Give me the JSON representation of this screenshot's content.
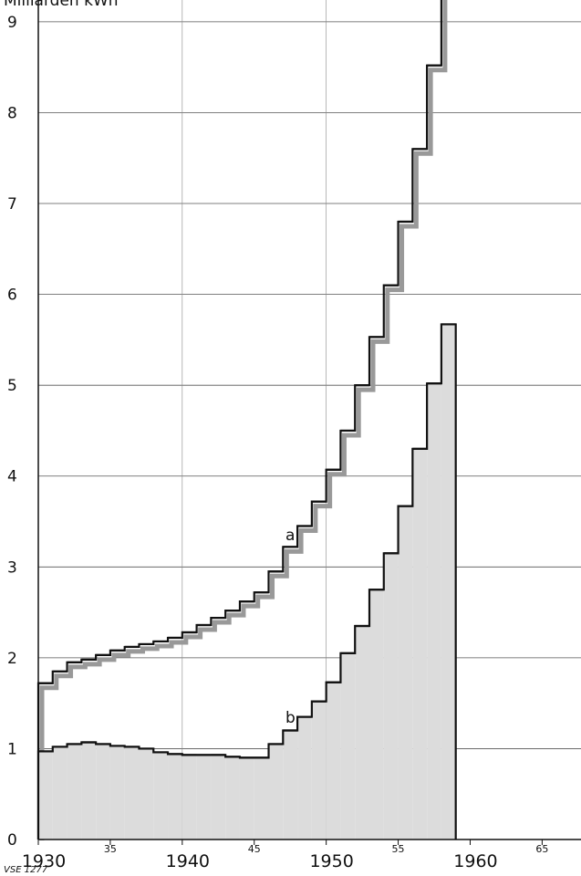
{
  "chart_data": {
    "type": "step",
    "title": "Milliarden kWh",
    "note": "VSE 1277",
    "x": [
      1930,
      1931,
      1932,
      1933,
      1934,
      1935,
      1936,
      1937,
      1938,
      1939,
      1940,
      1941,
      1942,
      1943,
      1944,
      1945,
      1946,
      1947,
      1948,
      1949,
      1950,
      1951,
      1952,
      1953,
      1954,
      1955,
      1956,
      1957,
      1958,
      1959
    ],
    "series": [
      {
        "name": "a",
        "color": "#111111",
        "shadow": "#999999",
        "values": [
          1.72,
          1.85,
          1.95,
          1.98,
          2.03,
          2.08,
          2.12,
          2.15,
          2.18,
          2.22,
          2.28,
          2.36,
          2.44,
          2.52,
          2.62,
          2.72,
          2.95,
          3.22,
          3.45,
          3.72,
          4.07,
          4.5,
          5.0,
          5.53,
          6.1,
          6.8,
          7.6,
          8.52,
          9.6,
          null
        ]
      },
      {
        "name": "b",
        "color": "#111111",
        "fill": "#dcdcdc",
        "values": [
          0.97,
          1.02,
          1.05,
          1.07,
          1.05,
          1.03,
          1.02,
          1.0,
          0.96,
          0.94,
          0.93,
          0.93,
          0.93,
          0.91,
          0.9,
          0.9,
          1.05,
          1.2,
          1.35,
          1.52,
          1.73,
          2.05,
          2.35,
          2.75,
          3.15,
          3.67,
          4.3,
          5.02,
          5.67,
          null
        ]
      }
    ],
    "xlim": [
      1930,
      1967.7
    ],
    "ylim": [
      0,
      9.24
    ],
    "xticks": [
      1930,
      {
        "value": 1935,
        "label": "35"
      },
      1940,
      {
        "value": 1945,
        "label": "45"
      },
      1950,
      {
        "value": 1955,
        "label": "55"
      },
      1960,
      {
        "value": 1965,
        "label": "65"
      }
    ],
    "yticks": [
      0,
      1,
      2,
      3,
      4,
      5,
      6,
      7,
      8,
      9
    ],
    "xgrid": [
      1940,
      1950
    ],
    "grid": true
  }
}
